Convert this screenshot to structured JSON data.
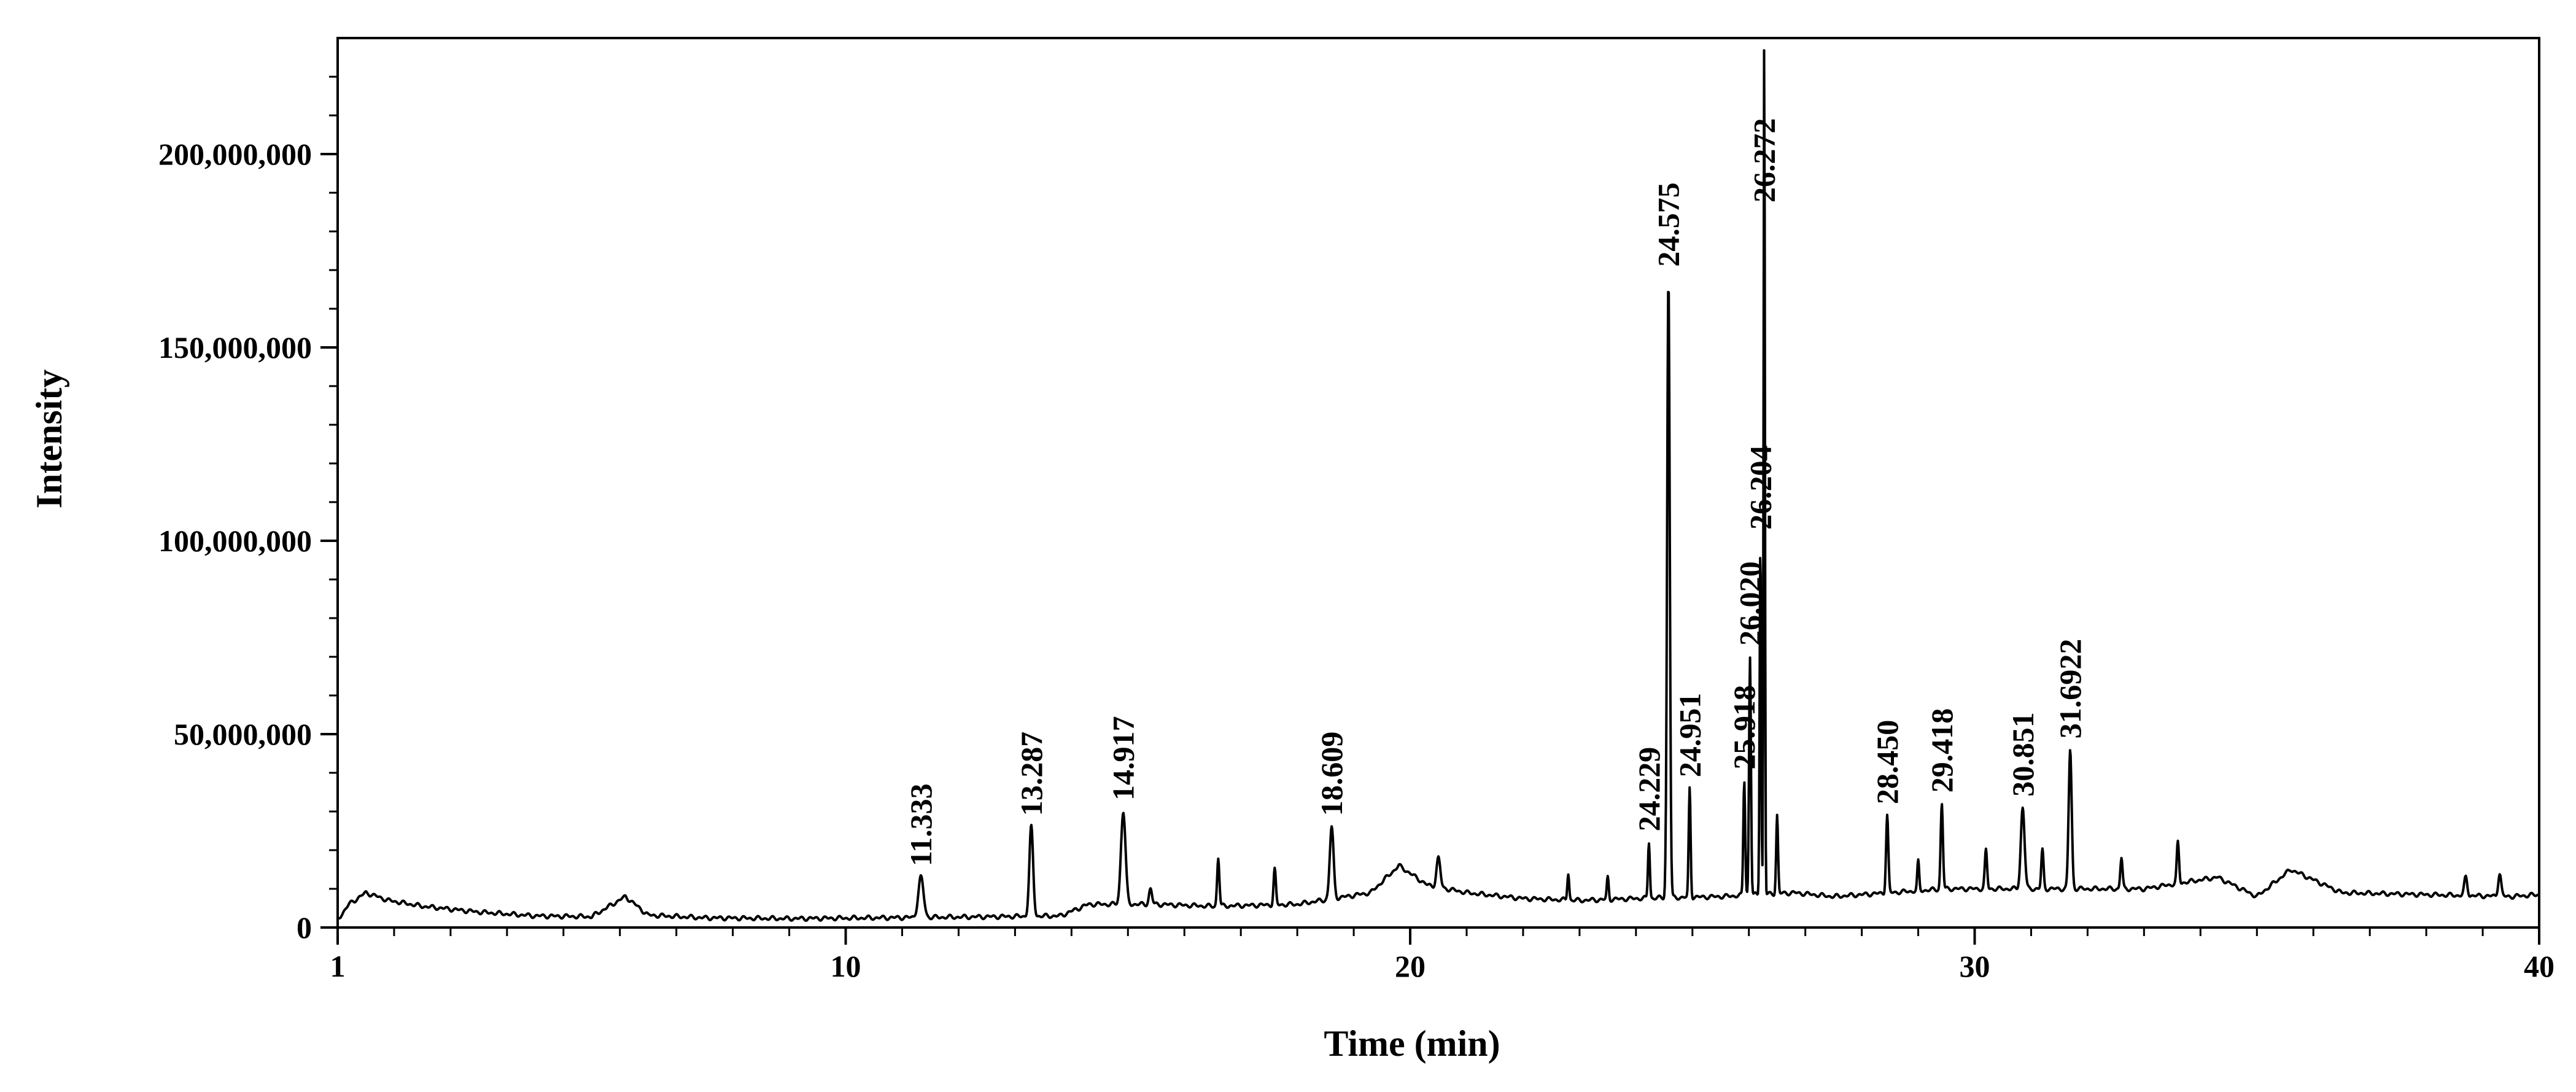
{
  "chart_data": {
    "type": "line",
    "title": "",
    "xlabel": "Time (min)",
    "ylabel": "Intensity",
    "xlim": [
      1,
      40
    ],
    "ylim": [
      0,
      230000000
    ],
    "grid": false,
    "x_ticks": [
      1,
      10,
      20,
      30,
      40
    ],
    "x_tick_labels": [
      "1",
      "10",
      "20",
      "30",
      "40"
    ],
    "y_ticks": [
      0,
      50000000,
      100000000,
      150000000,
      200000000
    ],
    "y_tick_labels": [
      "0",
      "50,000,000",
      "100,000,000",
      "150,000,000",
      "200,000,000"
    ],
    "baseline": [
      [
        1.0,
        2000000
      ],
      [
        1.2,
        6000000
      ],
      [
        1.5,
        9000000
      ],
      [
        1.9,
        7000000
      ],
      [
        2.5,
        5500000
      ],
      [
        3.5,
        4000000
      ],
      [
        4.5,
        3000000
      ],
      [
        5.5,
        2800000
      ],
      [
        6.1,
        8000000
      ],
      [
        6.5,
        3200000
      ],
      [
        7.5,
        2500000
      ],
      [
        9.0,
        2300000
      ],
      [
        10.5,
        2500000
      ],
      [
        12.0,
        2700000
      ],
      [
        13.8,
        3000000
      ],
      [
        14.3,
        6000000
      ],
      [
        15.5,
        6000000
      ],
      [
        16.5,
        5500000
      ],
      [
        18.0,
        6000000
      ],
      [
        19.3,
        9000000
      ],
      [
        19.8,
        16000000
      ],
      [
        20.3,
        11000000
      ],
      [
        21.0,
        9000000
      ],
      [
        22.0,
        7500000
      ],
      [
        23.0,
        7000000
      ],
      [
        24.0,
        7500000
      ],
      [
        25.5,
        8000000
      ],
      [
        26.8,
        9000000
      ],
      [
        27.5,
        8000000
      ],
      [
        28.5,
        9000000
      ],
      [
        29.5,
        10000000
      ],
      [
        30.5,
        10000000
      ],
      [
        32.0,
        10000000
      ],
      [
        33.0,
        10000000
      ],
      [
        34.3,
        13000000
      ],
      [
        35.0,
        8000000
      ],
      [
        35.6,
        15000000
      ],
      [
        36.5,
        9000000
      ],
      [
        38.0,
        8500000
      ],
      [
        39.5,
        8000000
      ],
      [
        40.0,
        8500000
      ]
    ],
    "peaks": [
      {
        "label": "11.333",
        "x": 11.333,
        "y": 13000000,
        "width": 0.14
      },
      {
        "label": "13.287",
        "x": 13.287,
        "y": 26000000,
        "width": 0.1
      },
      {
        "label": "14.917",
        "x": 14.917,
        "y": 30000000,
        "width": 0.12
      },
      {
        "label": "",
        "x": 15.4,
        "y": 10000000,
        "width": 0.08
      },
      {
        "label": "",
        "x": 16.6,
        "y": 18000000,
        "width": 0.06
      },
      {
        "label": "",
        "x": 17.6,
        "y": 15000000,
        "width": 0.06
      },
      {
        "label": "18.609",
        "x": 18.609,
        "y": 26000000,
        "width": 0.1
      },
      {
        "label": "",
        "x": 20.5,
        "y": 18000000,
        "width": 0.1
      },
      {
        "label": "",
        "x": 22.8,
        "y": 14000000,
        "width": 0.05
      },
      {
        "label": "",
        "x": 23.5,
        "y": 13000000,
        "width": 0.05
      },
      {
        "label": "24.229",
        "x": 24.229,
        "y": 22000000,
        "width": 0.05
      },
      {
        "label": "24.575",
        "x": 24.575,
        "y": 168000000,
        "width": 0.07
      },
      {
        "label": "24.951",
        "x": 24.951,
        "y": 36000000,
        "width": 0.05
      },
      {
        "label": "25.918",
        "x": 25.918,
        "y": 38000000,
        "width": 0.05
      },
      {
        "label": "26.020",
        "x": 26.02,
        "y": 70000000,
        "width": 0.05
      },
      {
        "label": "26.204",
        "x": 26.204,
        "y": 100000000,
        "width": 0.04
      },
      {
        "label": "26.272",
        "x": 26.272,
        "y": 230000000,
        "width": 0.035
      },
      {
        "label": "",
        "x": 26.5,
        "y": 29000000,
        "width": 0.05
      },
      {
        "label": "28.450",
        "x": 28.45,
        "y": 29000000,
        "width": 0.06
      },
      {
        "label": "",
        "x": 29.0,
        "y": 17000000,
        "width": 0.05
      },
      {
        "label": "29.418",
        "x": 29.418,
        "y": 32000000,
        "width": 0.06
      },
      {
        "label": "",
        "x": 30.2,
        "y": 20000000,
        "width": 0.06
      },
      {
        "label": "30.851",
        "x": 30.851,
        "y": 31000000,
        "width": 0.1
      },
      {
        "label": "",
        "x": 31.2,
        "y": 20000000,
        "width": 0.06
      },
      {
        "label": "31.6922",
        "x": 31.692,
        "y": 46000000,
        "width": 0.08
      },
      {
        "label": "",
        "x": 32.6,
        "y": 18000000,
        "width": 0.06
      },
      {
        "label": "",
        "x": 33.6,
        "y": 22000000,
        "width": 0.06
      },
      {
        "label": "",
        "x": 38.7,
        "y": 13000000,
        "width": 0.08
      },
      {
        "label": "",
        "x": 39.3,
        "y": 14000000,
        "width": 0.08
      }
    ]
  }
}
